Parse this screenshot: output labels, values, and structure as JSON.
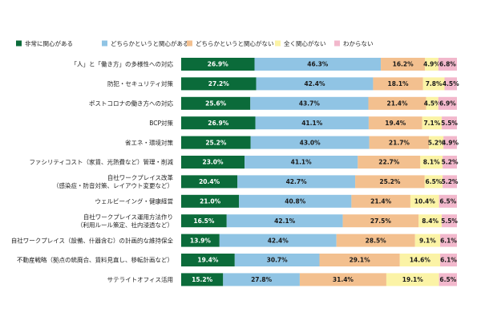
{
  "chart_data": {
    "type": "bar",
    "orientation": "horizontal",
    "stacked": true,
    "unit": "%",
    "xlim": [
      0,
      100
    ],
    "legend_position": "top",
    "grid": false,
    "categories": [
      [
        "「人」と「働き方」の多様性への対応"
      ],
      [
        "防犯・セキュリティ対策"
      ],
      [
        "ポストコロナの働き方への対応"
      ],
      [
        "BCP対策"
      ],
      [
        "省エネ・環境対策"
      ],
      [
        "ファシリティコスト（家賃、光熱費など）管理・削減"
      ],
      [
        "自社ワークプレイス改革",
        "（感染症・防音対策、レイアウト変更など）"
      ],
      [
        "ウェルビーイング・健康経営"
      ],
      [
        "自社ワークプレイス運用方法作り",
        "（利用ルール策定、社内浸透など）"
      ],
      [
        "自社ワークプレイス（設備、什器含む）の計画的な維持保全"
      ],
      [
        "不動産戦略（拠点の統廃合、賃料見直し、移転計画など）"
      ],
      [
        "サテライトオフィス活用"
      ]
    ],
    "series": [
      {
        "name": "非常に関心がある",
        "color": "#0b6b3a",
        "text_color": "#ffffff",
        "values": [
          26.9,
          27.2,
          25.6,
          26.9,
          25.2,
          23.0,
          20.4,
          21.0,
          16.5,
          13.9,
          19.4,
          15.2
        ]
      },
      {
        "name": "どちらかというと関心がある",
        "color": "#90c4e4",
        "text_color": "#1a1a1a",
        "values": [
          46.3,
          42.4,
          43.7,
          41.1,
          43.0,
          41.1,
          42.7,
          40.8,
          42.1,
          42.4,
          30.7,
          27.8
        ]
      },
      {
        "name": "どちらかというと関心がない",
        "color": "#f3c08f",
        "text_color": "#1a1a1a",
        "values": [
          16.2,
          18.1,
          21.4,
          19.4,
          21.7,
          22.7,
          25.2,
          21.4,
          27.5,
          28.5,
          29.1,
          31.4
        ]
      },
      {
        "name": "全く関心がない",
        "color": "#fbf3a6",
        "text_color": "#1a1a1a",
        "values": [
          4.9,
          7.8,
          4.5,
          7.1,
          5.2,
          8.1,
          6.5,
          10.4,
          8.4,
          9.1,
          14.6,
          19.1
        ]
      },
      {
        "name": "わからない",
        "color": "#f2b8cc",
        "text_color": "#1a1a1a",
        "values": [
          6.8,
          4.5,
          6.9,
          5.5,
          4.9,
          5.2,
          5.2,
          6.5,
          5.5,
          6.1,
          6.1,
          6.5
        ]
      }
    ]
  }
}
